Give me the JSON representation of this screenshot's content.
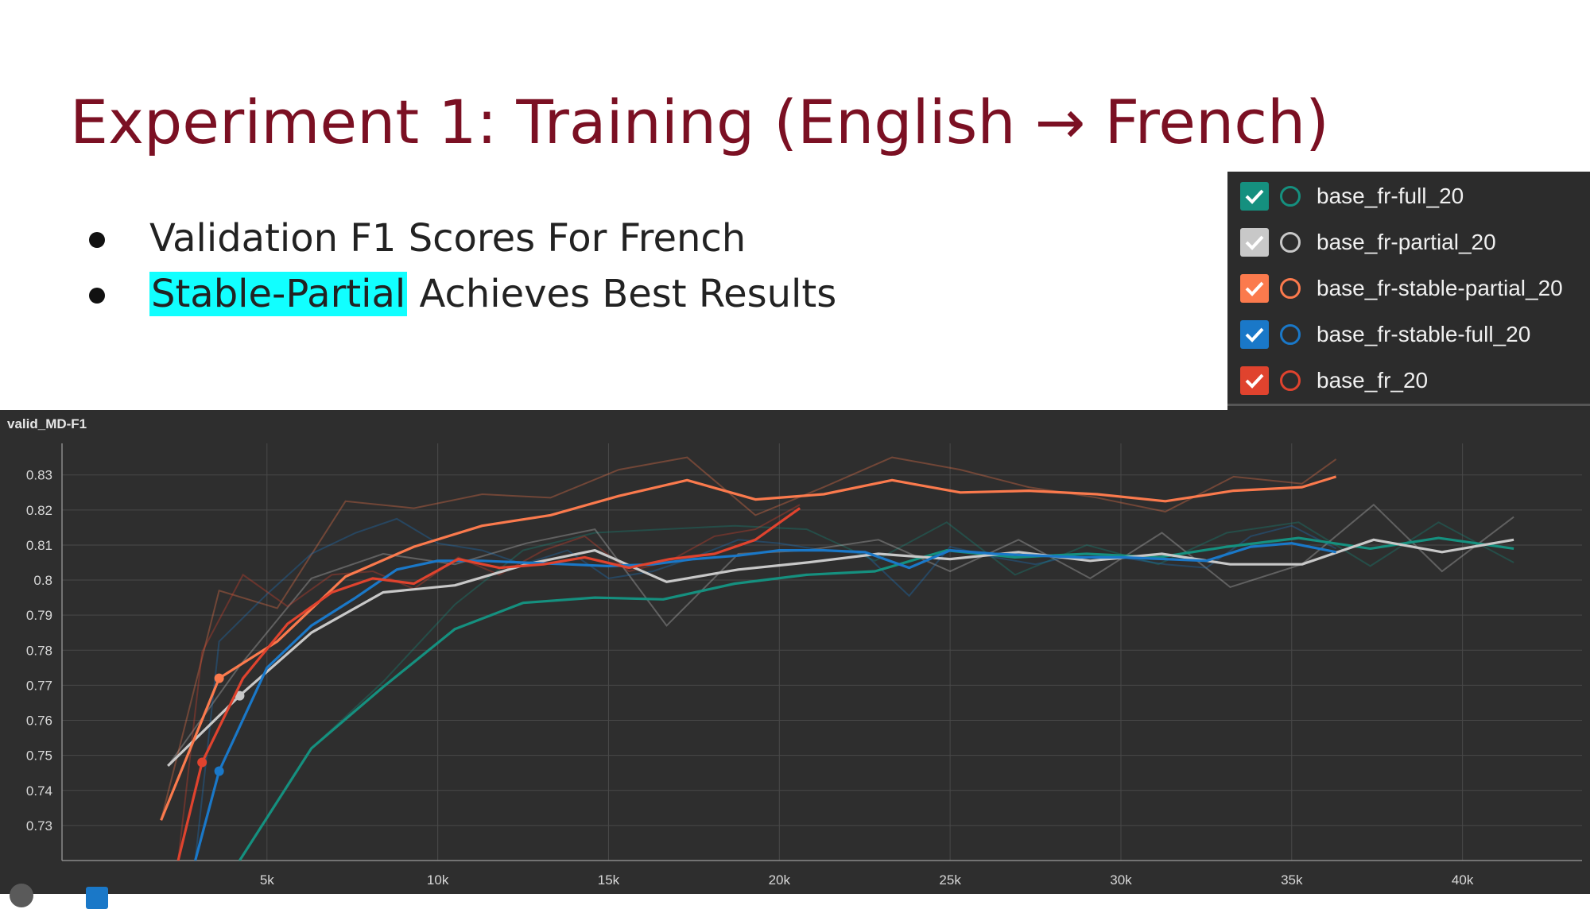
{
  "slide": {
    "title": "Experiment 1: Training (English → French)",
    "bullets": [
      {
        "highlight": "",
        "text": "Validation F1 Scores For French"
      },
      {
        "highlight": "Stable-Partial",
        "text": " Achieves Best Results"
      }
    ],
    "highlight_color": "#11ffff",
    "title_color": "#7b1023"
  },
  "legend": {
    "items": [
      {
        "label": "base_fr-full_20",
        "color": "#15907f",
        "checked": true
      },
      {
        "label": "base_fr-partial_20",
        "color": "#c8c8c8",
        "checked": true
      },
      {
        "label": "base_fr-stable-partial_20",
        "color": "#fb7a4d",
        "checked": true
      },
      {
        "label": "base_fr-stable-full_20",
        "color": "#1a78c8",
        "checked": true
      },
      {
        "label": "base_fr_20",
        "color": "#e0432e",
        "checked": true
      }
    ],
    "icons": {
      "check": "check-icon",
      "ring": "circle-outline-icon"
    }
  },
  "chart_data": {
    "type": "line",
    "title": "valid_MD-F1",
    "xlabel": "",
    "ylabel": "",
    "xlim": [
      -1000,
      43500
    ],
    "ylim": [
      0.72,
      0.839
    ],
    "xticks": [
      5000,
      10000,
      15000,
      20000,
      25000,
      30000,
      35000,
      40000
    ],
    "xtick_labels": [
      "5k",
      "10k",
      "15k",
      "20k",
      "25k",
      "30k",
      "35k",
      "40k"
    ],
    "yticks": [
      0.73,
      0.74,
      0.75,
      0.76,
      0.77,
      0.78,
      0.79,
      0.8,
      0.81,
      0.82,
      0.83
    ],
    "ytick_labels": [
      "0.73",
      "0.74",
      "0.75",
      "0.76",
      "0.77",
      "0.78",
      "0.79",
      "0.8",
      "0.81",
      "0.82",
      "0.83"
    ],
    "grid": true,
    "background": "#2e2e2e",
    "series": [
      {
        "name": "base_fr-full_20",
        "color": "#15907f",
        "x": [
          4200,
          6300,
          8400,
          10500,
          12500,
          14600,
          16600,
          18700,
          20800,
          22800,
          24900,
          26900,
          29000,
          31100,
          33100,
          35200,
          37300,
          39300,
          41500
        ],
        "y": [
          0.72,
          0.752,
          0.7695,
          0.786,
          0.7935,
          0.795,
          0.7945,
          0.799,
          0.8015,
          0.8025,
          0.8085,
          0.8065,
          0.8075,
          0.8065,
          0.8095,
          0.812,
          0.809,
          0.812,
          0.809
        ],
        "raw": [
          0.72,
          0.752,
          0.771,
          0.793,
          0.8085,
          0.8135,
          0.8145,
          0.8155,
          0.8145,
          0.8055,
          0.8165,
          0.8015,
          0.81,
          0.8045,
          0.8135,
          0.8165,
          0.804,
          0.8165,
          0.805
        ],
        "marker": null
      },
      {
        "name": "base_fr-partial_20",
        "color": "#c8c8c8",
        "x": [
          2100,
          4200,
          6300,
          8400,
          10500,
          12600,
          14600,
          16700,
          18800,
          20800,
          22900,
          25000,
          27000,
          29100,
          31200,
          33200,
          35300,
          37400,
          39400,
          41500
        ],
        "y": [
          0.747,
          0.767,
          0.785,
          0.7965,
          0.7985,
          0.8045,
          0.8085,
          0.7995,
          0.803,
          0.805,
          0.8075,
          0.806,
          0.808,
          0.8055,
          0.8075,
          0.8045,
          0.8045,
          0.8115,
          0.808,
          0.8115
        ],
        "raw": [
          0.747,
          0.7755,
          0.8005,
          0.8075,
          0.8045,
          0.8105,
          0.8145,
          0.787,
          0.8075,
          0.8085,
          0.8115,
          0.8025,
          0.8115,
          0.8005,
          0.8135,
          0.798,
          0.8045,
          0.8215,
          0.8025,
          0.818
        ],
        "marker": [
          4200,
          0.767
        ]
      },
      {
        "name": "base_fr-stable-partial_20",
        "color": "#fb7a4d",
        "x": [
          1900,
          3600,
          5300,
          7300,
          9300,
          11300,
          13300,
          15300,
          17300,
          19300,
          21300,
          23300,
          25300,
          27300,
          29300,
          31300,
          33300,
          35300,
          36300
        ],
        "y": [
          0.7315,
          0.772,
          0.7825,
          0.801,
          0.8095,
          0.8155,
          0.8185,
          0.824,
          0.8285,
          0.823,
          0.8245,
          0.8285,
          0.825,
          0.8255,
          0.8245,
          0.8225,
          0.8255,
          0.8265,
          0.8295
        ],
        "raw": [
          0.7315,
          0.797,
          0.792,
          0.8225,
          0.8205,
          0.8245,
          0.8235,
          0.8315,
          0.835,
          0.8185,
          0.8265,
          0.835,
          0.8315,
          0.8265,
          0.8235,
          0.8195,
          0.8295,
          0.8275,
          0.8345
        ],
        "marker": [
          3600,
          0.772
        ]
      },
      {
        "name": "base_fr-stable-full_20",
        "color": "#1a78c8",
        "x": [
          2900,
          3600,
          5000,
          6300,
          7600,
          8800,
          10000,
          11300,
          12500,
          13800,
          15000,
          16300,
          17500,
          18800,
          20000,
          21300,
          22500,
          23800,
          25000,
          26300,
          27500,
          28800,
          30000,
          31300,
          32500,
          33800,
          35000,
          36300
        ],
        "y": [
          0.72,
          0.7455,
          0.775,
          0.787,
          0.795,
          0.803,
          0.8055,
          0.8055,
          0.805,
          0.8045,
          0.804,
          0.8045,
          0.806,
          0.807,
          0.8085,
          0.8085,
          0.808,
          0.8035,
          0.8085,
          0.8075,
          0.807,
          0.8065,
          0.8065,
          0.806,
          0.8055,
          0.8095,
          0.8105,
          0.808
        ],
        "raw": [
          0.72,
          0.7825,
          0.796,
          0.8075,
          0.8135,
          0.8175,
          0.8105,
          0.8085,
          0.8045,
          0.8085,
          0.8005,
          0.8025,
          0.8065,
          0.8115,
          0.8105,
          0.8085,
          0.8075,
          0.7955,
          0.8095,
          0.8065,
          0.8045,
          0.8075,
          0.8065,
          0.8045,
          0.8035,
          0.8125,
          0.8155,
          0.809
        ],
        "marker": [
          3600,
          0.7455
        ]
      },
      {
        "name": "base_fr_20",
        "color": "#e0432e",
        "x": [
          2400,
          3100,
          4300,
          5600,
          6900,
          8100,
          9300,
          10600,
          11800,
          13100,
          14300,
          15600,
          16800,
          18100,
          19300,
          20600
        ],
        "y": [
          0.72,
          0.748,
          0.772,
          0.7875,
          0.7965,
          0.8005,
          0.799,
          0.806,
          0.8035,
          0.8045,
          0.8065,
          0.8035,
          0.806,
          0.8075,
          0.8115,
          0.8205
        ],
        "raw": [
          0.72,
          0.7795,
          0.8015,
          0.7925,
          0.8015,
          0.8025,
          0.7975,
          0.8065,
          0.8015,
          0.8085,
          0.8125,
          0.8025,
          0.8055,
          0.8125,
          0.8145,
          0.8215
        ],
        "marker": [
          3100,
          0.748
        ]
      }
    ]
  }
}
